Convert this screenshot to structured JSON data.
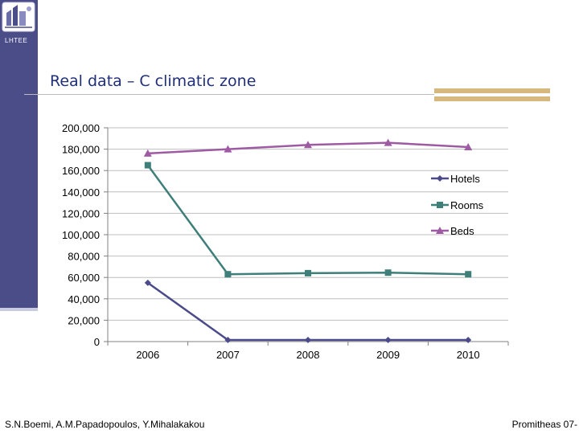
{
  "header": {
    "lab_name": "LHTEE",
    "title": "Real data – C climatic zone"
  },
  "footer": {
    "authors": "S.N.Boemi, A.M.Papadopoulos, Y.Mihalakakou",
    "event": "Promitheas 07-"
  },
  "colors": {
    "sidebar": "#4a4d88",
    "title": "#1f2f78",
    "accent": "#d7b980",
    "hotels": "#4b4a8a",
    "rooms": "#3f7f7a",
    "beds": "#9e5ba3"
  },
  "chart_data": {
    "type": "line",
    "categories": [
      "2006",
      "2007",
      "2008",
      "2009",
      "2010"
    ],
    "ylim": [
      0,
      200000
    ],
    "yticks": [
      "0",
      "20,000",
      "40,000",
      "60,000",
      "80,000",
      "100,000",
      "120,000",
      "140,000",
      "160,000",
      "180,000",
      "200,000"
    ],
    "ytick_values": [
      0,
      20000,
      40000,
      60000,
      80000,
      100000,
      120000,
      140000,
      160000,
      180000,
      200000
    ],
    "grid": true,
    "legend_position": "right",
    "series": [
      {
        "name": "Hotels",
        "marker": "diamond",
        "values": [
          55000,
          1500,
          1500,
          1500,
          1500
        ]
      },
      {
        "name": "Rooms",
        "marker": "square",
        "values": [
          165000,
          63000,
          64000,
          64500,
          63000
        ]
      },
      {
        "name": "Beds",
        "marker": "triangle",
        "values": [
          176000,
          180000,
          184000,
          186000,
          182000
        ]
      }
    ]
  }
}
